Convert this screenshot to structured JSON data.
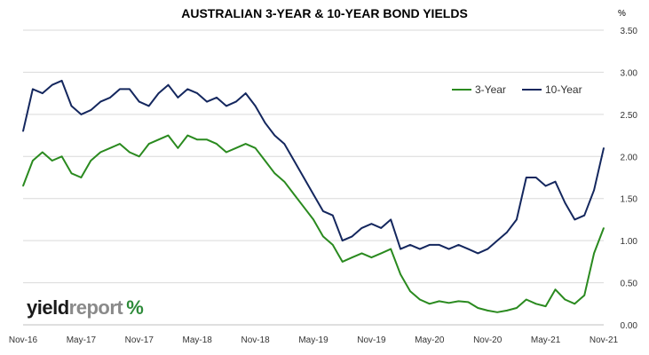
{
  "page": {
    "title": "AUSTRALIAN 3-YEAR & 10-YEAR BOND YIELDS",
    "unit": "%",
    "logo": {
      "word1": "yield",
      "word2": "report",
      "symbol": "%"
    }
  },
  "colors": {
    "three_year": "#2a8a1f",
    "ten_year": "#14275e",
    "grid": "#d9d9d9"
  },
  "chart_data": {
    "type": "line",
    "title": "AUSTRALIAN 3-YEAR & 10-YEAR BOND YIELDS",
    "ylabel": "%",
    "xlabel": "",
    "ylim": [
      0,
      3.5
    ],
    "y_ticks": [
      "0.00",
      "0.50",
      "1.00",
      "1.50",
      "2.00",
      "2.50",
      "3.00",
      "3.50"
    ],
    "x_range": [
      "2016-11",
      "2021-11"
    ],
    "x_tick_labels": [
      "Nov-16",
      "May-17",
      "Nov-17",
      "May-18",
      "Nov-18",
      "May-19",
      "Nov-19",
      "May-20",
      "Nov-20",
      "May-21",
      "Nov-21"
    ],
    "y_axis_side": "right",
    "grid": "horizontal",
    "legend_position": "top-right",
    "series": [
      {
        "name": "3-Year",
        "x": [
          "2016-11",
          "2016-12",
          "2017-01",
          "2017-02",
          "2017-03",
          "2017-04",
          "2017-05",
          "2017-06",
          "2017-07",
          "2017-08",
          "2017-09",
          "2017-10",
          "2017-11",
          "2017-12",
          "2018-01",
          "2018-02",
          "2018-03",
          "2018-04",
          "2018-05",
          "2018-06",
          "2018-07",
          "2018-08",
          "2018-09",
          "2018-10",
          "2018-11",
          "2018-12",
          "2019-01",
          "2019-02",
          "2019-03",
          "2019-04",
          "2019-05",
          "2019-06",
          "2019-07",
          "2019-08",
          "2019-09",
          "2019-10",
          "2019-11",
          "2019-12",
          "2020-01",
          "2020-02",
          "2020-03",
          "2020-04",
          "2020-05",
          "2020-06",
          "2020-07",
          "2020-08",
          "2020-09",
          "2020-10",
          "2020-11",
          "2020-12",
          "2021-01",
          "2021-02",
          "2021-03",
          "2021-04",
          "2021-05",
          "2021-06",
          "2021-07",
          "2021-08",
          "2021-09",
          "2021-10",
          "2021-11"
        ],
        "values": [
          1.65,
          1.95,
          2.05,
          1.95,
          2.0,
          1.8,
          1.75,
          1.95,
          2.05,
          2.1,
          2.15,
          2.05,
          2.0,
          2.15,
          2.2,
          2.25,
          2.1,
          2.25,
          2.2,
          2.2,
          2.15,
          2.05,
          2.1,
          2.15,
          2.1,
          1.95,
          1.8,
          1.7,
          1.55,
          1.4,
          1.25,
          1.05,
          0.95,
          0.75,
          0.8,
          0.85,
          0.8,
          0.85,
          0.9,
          0.6,
          0.4,
          0.3,
          0.25,
          0.28,
          0.26,
          0.28,
          0.27,
          0.2,
          0.17,
          0.15,
          0.17,
          0.2,
          0.3,
          0.25,
          0.22,
          0.42,
          0.3,
          0.25,
          0.35,
          0.85,
          1.15
        ]
      },
      {
        "name": "10-Year",
        "x": [
          "2016-11",
          "2016-12",
          "2017-01",
          "2017-02",
          "2017-03",
          "2017-04",
          "2017-05",
          "2017-06",
          "2017-07",
          "2017-08",
          "2017-09",
          "2017-10",
          "2017-11",
          "2017-12",
          "2018-01",
          "2018-02",
          "2018-03",
          "2018-04",
          "2018-05",
          "2018-06",
          "2018-07",
          "2018-08",
          "2018-09",
          "2018-10",
          "2018-11",
          "2018-12",
          "2019-01",
          "2019-02",
          "2019-03",
          "2019-04",
          "2019-05",
          "2019-06",
          "2019-07",
          "2019-08",
          "2019-09",
          "2019-10",
          "2019-11",
          "2019-12",
          "2020-01",
          "2020-02",
          "2020-03",
          "2020-04",
          "2020-05",
          "2020-06",
          "2020-07",
          "2020-08",
          "2020-09",
          "2020-10",
          "2020-11",
          "2020-12",
          "2021-01",
          "2021-02",
          "2021-03",
          "2021-04",
          "2021-05",
          "2021-06",
          "2021-07",
          "2021-08",
          "2021-09",
          "2021-10",
          "2021-11"
        ],
        "values": [
          2.3,
          2.8,
          2.75,
          2.85,
          2.9,
          2.6,
          2.5,
          2.55,
          2.65,
          2.7,
          2.8,
          2.8,
          2.65,
          2.6,
          2.75,
          2.85,
          2.7,
          2.8,
          2.75,
          2.65,
          2.7,
          2.6,
          2.65,
          2.75,
          2.6,
          2.4,
          2.25,
          2.15,
          1.95,
          1.75,
          1.55,
          1.35,
          1.3,
          1.0,
          1.05,
          1.15,
          1.2,
          1.15,
          1.25,
          0.9,
          0.95,
          0.9,
          0.95,
          0.95,
          0.9,
          0.95,
          0.9,
          0.85,
          0.9,
          1.0,
          1.1,
          1.25,
          1.75,
          1.75,
          1.65,
          1.7,
          1.45,
          1.25,
          1.3,
          1.6,
          2.1
        ]
      }
    ]
  }
}
